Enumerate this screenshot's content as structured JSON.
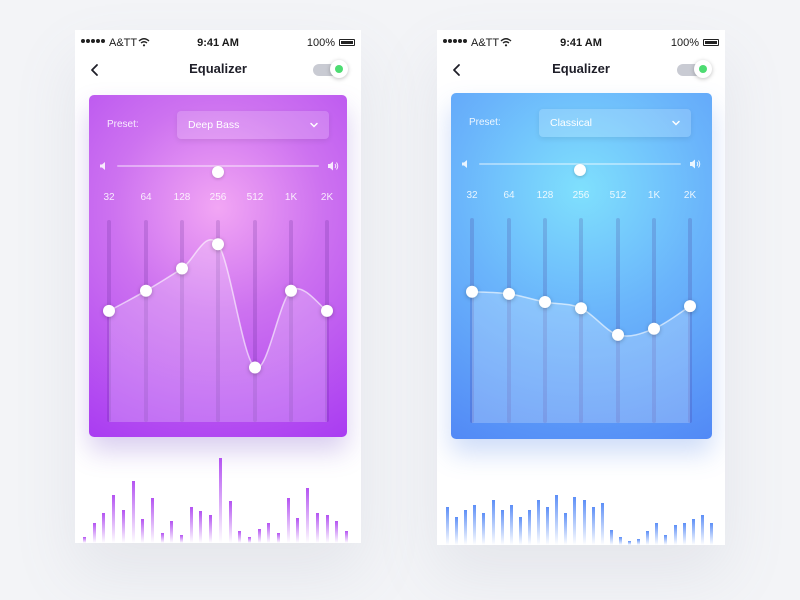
{
  "screens": [
    {
      "status": {
        "carrier": "A&TT",
        "time": "9:41 AM",
        "battery": "100%"
      },
      "title": "Equalizer",
      "toggle_on": true,
      "preset_label": "Preset:",
      "preset_value": "Deep Bass",
      "volume": 0.5,
      "bands": [
        "32",
        "64",
        "128",
        "256",
        "512",
        "1K",
        "2K"
      ],
      "band_levels": [
        0.55,
        0.65,
        0.76,
        0.88,
        0.27,
        0.65,
        0.55
      ],
      "accent": "#b453f2",
      "spectrum_levels": [
        0.06,
        0.2,
        0.3,
        0.48,
        0.33,
        0.62,
        0.24,
        0.45,
        0.1,
        0.22,
        0.08,
        0.36,
        0.32,
        0.28,
        0.85,
        0.42,
        0.12,
        0.06,
        0.14,
        0.2,
        0.1,
        0.45,
        0.25,
        0.55,
        0.3,
        0.28,
        0.22,
        0.12
      ]
    },
    {
      "status": {
        "carrier": "A&TT",
        "time": "9:41 AM",
        "battery": "100%"
      },
      "title": "Equalizer",
      "toggle_on": true,
      "preset_label": "Preset:",
      "preset_value": "Classical",
      "volume": 0.5,
      "bands": [
        "32",
        "64",
        "128",
        "256",
        "512",
        "1K",
        "2K"
      ],
      "band_levels": [
        0.64,
        0.63,
        0.59,
        0.56,
        0.43,
        0.46,
        0.57
      ],
      "accent": "#5d8ff7",
      "spectrum_levels": [
        0.38,
        0.28,
        0.35,
        0.4,
        0.32,
        0.45,
        0.35,
        0.4,
        0.28,
        0.35,
        0.45,
        0.38,
        0.5,
        0.32,
        0.48,
        0.45,
        0.38,
        0.42,
        0.15,
        0.08,
        0.04,
        0.06,
        0.14,
        0.22,
        0.1,
        0.2,
        0.22,
        0.26,
        0.3,
        0.22
      ]
    }
  ]
}
